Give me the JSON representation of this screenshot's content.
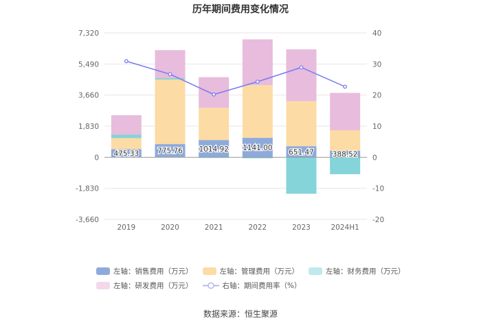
{
  "chart_data": {
    "type": "bar",
    "title": "历年期间费用变化情况",
    "categories": [
      "2019",
      "2020",
      "2021",
      "2022",
      "2023",
      "2024H1"
    ],
    "left_axis": {
      "ylim": [
        -3660,
        7320
      ],
      "ticks": [
        -3660,
        -1830,
        0,
        1830,
        3660,
        5490,
        7320
      ],
      "tick_labels": [
        "-3,660",
        "-1,830",
        "0",
        "1,830",
        "3,660",
        "5,490",
        "7,320"
      ]
    },
    "right_axis": {
      "ylim": [
        -20,
        40
      ],
      "ticks": [
        -20,
        -10,
        0,
        10,
        20,
        30,
        40
      ],
      "tick_labels": [
        "-20",
        "-10",
        "0",
        "10",
        "20",
        "30",
        "40"
      ]
    },
    "series": [
      {
        "name": "左轴：销售费用（万元）",
        "type": "bar",
        "color": "#8eaadb",
        "values": [
          475.33,
          775.76,
          1014.92,
          1141.0,
          651.47,
          388.52
        ],
        "labels": [
          "475.33",
          "775.76",
          "1014.92",
          "1141.00",
          "651.47",
          "388.52"
        ]
      },
      {
        "name": "左轴：管理费用（万元）",
        "type": "bar",
        "color": "#fddba4",
        "values": [
          650,
          3800,
          1900,
          3100,
          2650,
          1200
        ]
      },
      {
        "name": "左轴：财务费用（万元）",
        "type": "bar",
        "color": "#84d4d9",
        "values": [
          200,
          80,
          -40,
          -60,
          -2150,
          -1000
        ]
      },
      {
        "name": "左轴：研发费用（万元）",
        "type": "bar",
        "color": "#e8bcdc",
        "values": [
          1150,
          1650,
          1800,
          2700,
          3050,
          2200
        ]
      },
      {
        "name": "右轴：期间费用率（%）",
        "type": "line",
        "axis": "right",
        "color": "#7b7df0",
        "values": [
          30.9,
          26.7,
          20.2,
          24.3,
          28.9,
          22.7
        ]
      }
    ],
    "legend_position": "bottom",
    "grid": true
  },
  "source_text": "数据来源：恒生聚源"
}
